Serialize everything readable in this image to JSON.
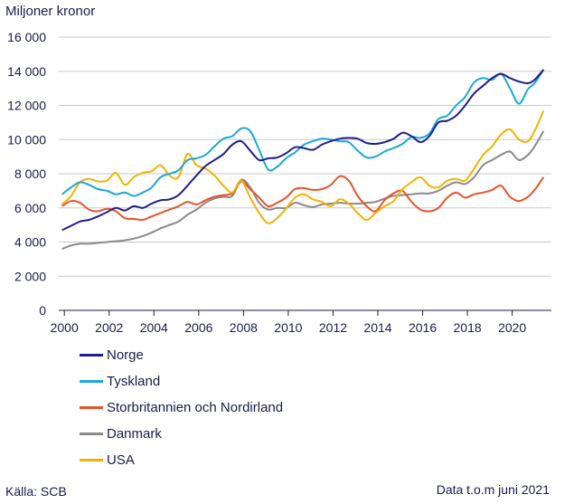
{
  "chart_data": {
    "type": "line",
    "ylabel": "Miljoner kronor",
    "ylim": [
      0,
      16000
    ],
    "xlim": [
      1999.75,
      2021.75
    ],
    "yticks": [
      0,
      2000,
      4000,
      6000,
      8000,
      10000,
      12000,
      14000,
      16000
    ],
    "yticklabels": [
      "0",
      "2 000",
      "4 000",
      "6 000",
      "8 000",
      "10 000",
      "12 000",
      "14 000",
      "16 000"
    ],
    "xticks": [
      2000,
      2002,
      2004,
      2006,
      2008,
      2010,
      2012,
      2014,
      2016,
      2018,
      2020
    ],
    "xticklabels": [
      "2000",
      "2002",
      "2004",
      "2006",
      "2008",
      "2010",
      "2012",
      "2014",
      "2016",
      "2018",
      "2020"
    ],
    "grid": "horizontal",
    "legend_position": "bottom-left",
    "series": [
      {
        "name": "Norge",
        "color": "#1e1e8c",
        "x": [
          1999.9,
          2000.3,
          2000.7,
          2001.1,
          2001.5,
          2001.9,
          2002.3,
          2002.7,
          2003.1,
          2003.5,
          2003.9,
          2004.3,
          2004.7,
          2005.1,
          2005.5,
          2005.9,
          2006.3,
          2006.7,
          2007.1,
          2007.5,
          2007.9,
          2008.3,
          2008.7,
          2009.1,
          2009.5,
          2009.9,
          2010.3,
          2010.7,
          2011.1,
          2011.5,
          2011.9,
          2012.3,
          2012.7,
          2013.1,
          2013.5,
          2013.9,
          2014.3,
          2014.7,
          2015.1,
          2015.5,
          2015.9,
          2016.3,
          2016.7,
          2017.1,
          2017.5,
          2017.9,
          2018.3,
          2018.7,
          2019.1,
          2019.5,
          2019.9,
          2020.3,
          2020.7,
          2021.0,
          2021.4
        ],
        "y": [
          4700,
          4950,
          5200,
          5300,
          5500,
          5750,
          6000,
          5850,
          6100,
          6000,
          6250,
          6450,
          6500,
          6750,
          7300,
          7900,
          8450,
          8800,
          9150,
          9700,
          9900,
          9350,
          8800,
          8900,
          8950,
          9200,
          9550,
          9500,
          9400,
          9700,
          9900,
          10050,
          10100,
          10050,
          9800,
          9750,
          9850,
          10050,
          10400,
          10200,
          9850,
          10200,
          11000,
          11100,
          11400,
          12000,
          12700,
          13150,
          13600,
          13850,
          13600,
          13400,
          13300,
          13500,
          14100
        ]
      },
      {
        "name": "Tyskland",
        "color": "#1aa8d8",
        "x": [
          1999.9,
          2000.3,
          2000.7,
          2001.1,
          2001.5,
          2001.9,
          2002.3,
          2002.7,
          2003.1,
          2003.5,
          2003.9,
          2004.3,
          2004.7,
          2005.1,
          2005.5,
          2005.9,
          2006.3,
          2006.7,
          2007.1,
          2007.5,
          2007.9,
          2008.3,
          2008.7,
          2009.1,
          2009.5,
          2009.9,
          2010.3,
          2010.7,
          2011.1,
          2011.5,
          2011.9,
          2012.3,
          2012.7,
          2013.1,
          2013.5,
          2013.9,
          2014.3,
          2014.7,
          2015.1,
          2015.5,
          2015.9,
          2016.3,
          2016.7,
          2017.1,
          2017.5,
          2017.9,
          2018.3,
          2018.7,
          2019.1,
          2019.5,
          2019.9,
          2020.3,
          2020.7,
          2021.0,
          2021.4
        ],
        "y": [
          6800,
          7200,
          7500,
          7350,
          7100,
          7000,
          6800,
          6900,
          6700,
          6900,
          7200,
          7800,
          8000,
          8200,
          8800,
          8900,
          9100,
          9600,
          10050,
          10200,
          10650,
          10500,
          9400,
          8250,
          8400,
          8900,
          9250,
          9700,
          9900,
          10050,
          10000,
          9900,
          9850,
          9350,
          8950,
          9000,
          9300,
          9500,
          9750,
          10150,
          10100,
          10350,
          11200,
          11400,
          12000,
          12500,
          13350,
          13600,
          13500,
          13850,
          13000,
          12100,
          12950,
          13300,
          14100
        ]
      },
      {
        "name": "Storbritannien och Nordirland",
        "color": "#e8532a",
        "x": [
          1999.9,
          2000.3,
          2000.7,
          2001.1,
          2001.5,
          2001.9,
          2002.3,
          2002.7,
          2003.1,
          2003.5,
          2003.9,
          2004.3,
          2004.7,
          2005.1,
          2005.5,
          2005.9,
          2006.3,
          2006.7,
          2007.1,
          2007.5,
          2007.9,
          2008.3,
          2008.7,
          2009.1,
          2009.5,
          2009.9,
          2010.3,
          2010.7,
          2011.1,
          2011.5,
          2011.9,
          2012.3,
          2012.7,
          2013.1,
          2013.5,
          2013.9,
          2014.3,
          2014.7,
          2015.1,
          2015.5,
          2015.9,
          2016.3,
          2016.7,
          2017.1,
          2017.5,
          2017.9,
          2018.3,
          2018.7,
          2019.1,
          2019.5,
          2019.9,
          2020.3,
          2020.7,
          2021.0,
          2021.4
        ],
        "y": [
          6100,
          6400,
          6300,
          5900,
          5800,
          5950,
          5800,
          5400,
          5350,
          5300,
          5500,
          5700,
          5900,
          6100,
          6350,
          6200,
          6450,
          6650,
          6750,
          6850,
          7550,
          7100,
          6600,
          6100,
          6300,
          6600,
          7100,
          7150,
          7050,
          7100,
          7350,
          7850,
          7600,
          6700,
          6100,
          5800,
          6450,
          6850,
          7000,
          6350,
          5900,
          5800,
          6000,
          6600,
          6900,
          6600,
          6800,
          6900,
          7050,
          7300,
          6650,
          6400,
          6650,
          7050,
          7800
        ]
      },
      {
        "name": "Danmark",
        "color": "#8a8a8a",
        "x": [
          1999.9,
          2000.3,
          2000.7,
          2001.1,
          2001.5,
          2001.9,
          2002.3,
          2002.7,
          2003.1,
          2003.5,
          2003.9,
          2004.3,
          2004.7,
          2005.1,
          2005.5,
          2005.9,
          2006.3,
          2006.7,
          2007.1,
          2007.5,
          2007.9,
          2008.3,
          2008.7,
          2009.1,
          2009.5,
          2009.9,
          2010.3,
          2010.7,
          2011.1,
          2011.5,
          2011.9,
          2012.3,
          2012.7,
          2013.1,
          2013.5,
          2013.9,
          2014.3,
          2014.7,
          2015.1,
          2015.5,
          2015.9,
          2016.3,
          2016.7,
          2017.1,
          2017.5,
          2017.9,
          2018.3,
          2018.7,
          2019.1,
          2019.5,
          2019.9,
          2020.3,
          2020.7,
          2021.0,
          2021.4
        ],
        "y": [
          3600,
          3800,
          3900,
          3900,
          3950,
          4000,
          4050,
          4100,
          4200,
          4350,
          4550,
          4800,
          5000,
          5200,
          5600,
          5900,
          6300,
          6550,
          6650,
          6700,
          7650,
          7200,
          6300,
          5900,
          6000,
          6000,
          6300,
          6150,
          6050,
          6200,
          6250,
          6300,
          6250,
          6250,
          6300,
          6350,
          6550,
          6700,
          6750,
          6800,
          6850,
          6850,
          7000,
          7300,
          7500,
          7400,
          7800,
          8500,
          8800,
          9100,
          9300,
          8800,
          9100,
          9600,
          10500
        ]
      },
      {
        "name": "USA",
        "color": "#f2b400",
        "x": [
          1999.9,
          2000.3,
          2000.7,
          2001.1,
          2001.5,
          2001.9,
          2002.3,
          2002.7,
          2003.1,
          2003.5,
          2003.9,
          2004.3,
          2004.7,
          2005.1,
          2005.5,
          2005.9,
          2006.3,
          2006.7,
          2007.1,
          2007.5,
          2007.9,
          2008.3,
          2008.7,
          2009.1,
          2009.5,
          2009.9,
          2010.3,
          2010.7,
          2011.1,
          2011.5,
          2011.9,
          2012.3,
          2012.7,
          2013.1,
          2013.5,
          2013.9,
          2014.3,
          2014.7,
          2015.1,
          2015.5,
          2015.9,
          2016.3,
          2016.7,
          2017.1,
          2017.5,
          2017.9,
          2018.3,
          2018.7,
          2019.1,
          2019.5,
          2019.9,
          2020.3,
          2020.7,
          2021.0,
          2021.4
        ],
        "y": [
          6200,
          6700,
          7500,
          7700,
          7550,
          7600,
          8050,
          7350,
          7800,
          8050,
          8150,
          8500,
          7900,
          7800,
          9150,
          8500,
          8300,
          7900,
          7300,
          6900,
          7600,
          6600,
          5700,
          5100,
          5400,
          5950,
          6600,
          6800,
          6500,
          6350,
          6100,
          6500,
          6250,
          5700,
          5300,
          5700,
          6100,
          6400,
          7100,
          7500,
          7800,
          7300,
          7200,
          7600,
          7700,
          7600,
          8300,
          9100,
          9600,
          10300,
          10600,
          10000,
          9900,
          10500,
          11700
        ]
      }
    ]
  },
  "footer": {
    "source": "Källa: SCB",
    "note": "Data t.o.m juni 2021"
  }
}
